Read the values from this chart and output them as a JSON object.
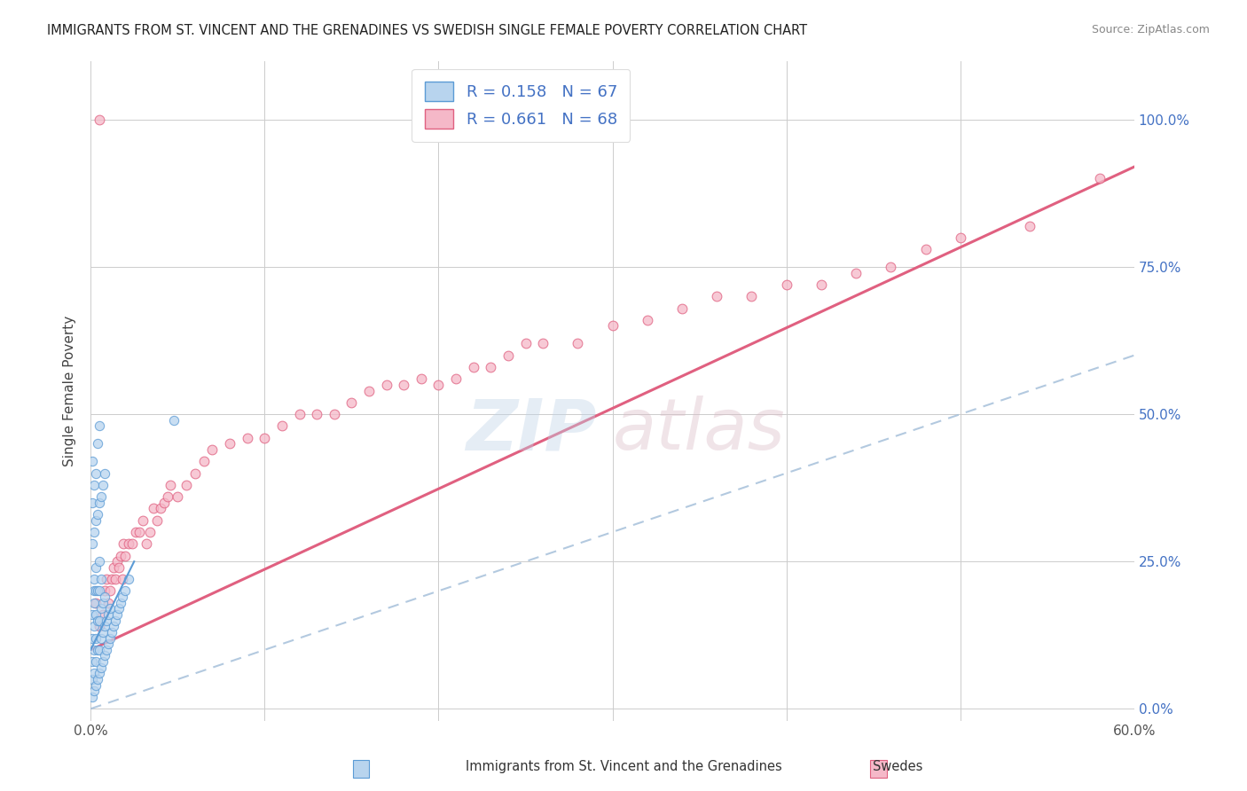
{
  "title": "IMMIGRANTS FROM ST. VINCENT AND THE GRENADINES VS SWEDISH SINGLE FEMALE POVERTY CORRELATION CHART",
  "source": "Source: ZipAtlas.com",
  "ylabel": "Single Female Poverty",
  "ytick_labels": [
    "0.0%",
    "25.0%",
    "50.0%",
    "75.0%",
    "100.0%"
  ],
  "ytick_values": [
    0.0,
    0.25,
    0.5,
    0.75,
    1.0
  ],
  "xlim": [
    0.0,
    0.6
  ],
  "ylim": [
    -0.02,
    1.1
  ],
  "legend_label_1": "R = 0.158   N = 67",
  "legend_label_2": "R = 0.661   N = 68",
  "bottom_label_1": "Immigrants from St. Vincent and the Grenadines",
  "bottom_label_2": "Swedes",
  "color_blue_face": "#b8d4ee",
  "color_blue_edge": "#5b9bd5",
  "color_pink_face": "#f5b8c8",
  "color_pink_edge": "#e06080",
  "color_blue_trend": "#a0bcd8",
  "color_pink_trend": "#e06080",
  "watermark_zip_color": "#c0d4e8",
  "watermark_atlas_color": "#d8b0c0",
  "blue_trend_x": [
    0.0,
    0.6
  ],
  "blue_trend_y": [
    0.0,
    0.6
  ],
  "pink_trend_x": [
    0.0,
    0.6
  ],
  "pink_trend_y": [
    0.1,
    0.92
  ],
  "blue_x": [
    0.001,
    0.001,
    0.001,
    0.001,
    0.001,
    0.002,
    0.002,
    0.002,
    0.002,
    0.002,
    0.002,
    0.002,
    0.003,
    0.003,
    0.003,
    0.003,
    0.003,
    0.003,
    0.004,
    0.004,
    0.004,
    0.004,
    0.005,
    0.005,
    0.005,
    0.005,
    0.005,
    0.006,
    0.006,
    0.006,
    0.006,
    0.007,
    0.007,
    0.007,
    0.008,
    0.008,
    0.008,
    0.009,
    0.009,
    0.01,
    0.01,
    0.011,
    0.011,
    0.012,
    0.013,
    0.014,
    0.015,
    0.016,
    0.017,
    0.018,
    0.02,
    0.022,
    0.001,
    0.001,
    0.001,
    0.002,
    0.002,
    0.003,
    0.003,
    0.004,
    0.004,
    0.005,
    0.005,
    0.006,
    0.007,
    0.008,
    0.048
  ],
  "blue_y": [
    0.02,
    0.05,
    0.08,
    0.12,
    0.16,
    0.03,
    0.06,
    0.1,
    0.14,
    0.18,
    0.2,
    0.22,
    0.04,
    0.08,
    0.12,
    0.16,
    0.2,
    0.24,
    0.05,
    0.1,
    0.15,
    0.2,
    0.06,
    0.1,
    0.15,
    0.2,
    0.25,
    0.07,
    0.12,
    0.17,
    0.22,
    0.08,
    0.13,
    0.18,
    0.09,
    0.14,
    0.19,
    0.1,
    0.15,
    0.11,
    0.16,
    0.12,
    0.17,
    0.13,
    0.14,
    0.15,
    0.16,
    0.17,
    0.18,
    0.19,
    0.2,
    0.22,
    0.28,
    0.35,
    0.42,
    0.3,
    0.38,
    0.32,
    0.4,
    0.33,
    0.45,
    0.35,
    0.48,
    0.36,
    0.38,
    0.4,
    0.49
  ],
  "pink_x": [
    0.003,
    0.005,
    0.007,
    0.008,
    0.009,
    0.01,
    0.011,
    0.012,
    0.013,
    0.014,
    0.015,
    0.016,
    0.017,
    0.018,
    0.019,
    0.02,
    0.022,
    0.024,
    0.026,
    0.028,
    0.03,
    0.032,
    0.034,
    0.036,
    0.038,
    0.04,
    0.042,
    0.044,
    0.046,
    0.05,
    0.055,
    0.06,
    0.065,
    0.07,
    0.08,
    0.09,
    0.1,
    0.11,
    0.12,
    0.13,
    0.14,
    0.15,
    0.16,
    0.17,
    0.18,
    0.19,
    0.2,
    0.21,
    0.22,
    0.23,
    0.24,
    0.25,
    0.26,
    0.28,
    0.3,
    0.32,
    0.34,
    0.36,
    0.38,
    0.4,
    0.42,
    0.44,
    0.46,
    0.48,
    0.5,
    0.54,
    0.58,
    0.005
  ],
  "pink_y": [
    0.18,
    0.14,
    0.16,
    0.2,
    0.22,
    0.18,
    0.2,
    0.22,
    0.24,
    0.22,
    0.25,
    0.24,
    0.26,
    0.22,
    0.28,
    0.26,
    0.28,
    0.28,
    0.3,
    0.3,
    0.32,
    0.28,
    0.3,
    0.34,
    0.32,
    0.34,
    0.35,
    0.36,
    0.38,
    0.36,
    0.38,
    0.4,
    0.42,
    0.44,
    0.45,
    0.46,
    0.46,
    0.48,
    0.5,
    0.5,
    0.5,
    0.52,
    0.54,
    0.55,
    0.55,
    0.56,
    0.55,
    0.56,
    0.58,
    0.58,
    0.6,
    0.62,
    0.62,
    0.62,
    0.65,
    0.66,
    0.68,
    0.7,
    0.7,
    0.72,
    0.72,
    0.74,
    0.75,
    0.78,
    0.8,
    0.82,
    0.9,
    1.0
  ]
}
